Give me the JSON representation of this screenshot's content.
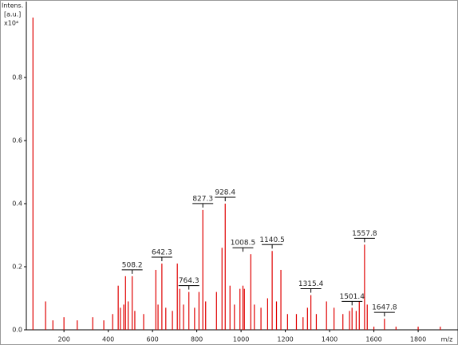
{
  "chart_data": {
    "type": "stick",
    "y_label_lines": [
      "Intens.",
      "[a.u.]",
      "x10⁴"
    ],
    "x_label": "m/z",
    "color": "#e00000",
    "xlim": [
      30,
      1980
    ],
    "ylim": [
      0,
      1.0
    ],
    "xticks": [
      200,
      400,
      600,
      800,
      1000,
      1200,
      1400,
      1600,
      1800
    ],
    "yticks": [
      {
        "value": 0,
        "label": "0.0"
      },
      0.2,
      0.4,
      0.6,
      0.8
    ],
    "x": [
      60,
      117,
      150,
      200,
      260,
      330,
      380,
      420,
      445,
      455,
      470,
      478,
      490,
      508.2,
      520,
      560,
      615,
      625,
      642.3,
      660,
      690,
      712,
      723,
      740,
      764.3,
      790,
      810,
      827.3,
      840,
      889,
      914,
      928.4,
      950,
      970,
      995,
      1008.5,
      1015,
      1044,
      1060,
      1090,
      1120,
      1140.5,
      1160,
      1180,
      1210,
      1250,
      1280,
      1300,
      1315.4,
      1340,
      1386,
      1420,
      1460,
      1490,
      1501.4,
      1520,
      1534,
      1557.8,
      1570,
      1600,
      1647.8,
      1700,
      1800,
      1900
    ],
    "values": [
      0.99,
      0.09,
      0.03,
      0.04,
      0.03,
      0.04,
      0.03,
      0.05,
      0.14,
      0.07,
      0.08,
      0.17,
      0.09,
      0.17,
      0.06,
      0.05,
      0.19,
      0.08,
      0.21,
      0.07,
      0.06,
      0.21,
      0.13,
      0.08,
      0.12,
      0.07,
      0.12,
      0.38,
      0.09,
      0.12,
      0.26,
      0.4,
      0.14,
      0.08,
      0.13,
      0.14,
      0.13,
      0.24,
      0.08,
      0.07,
      0.1,
      0.25,
      0.09,
      0.19,
      0.05,
      0.05,
      0.04,
      0.07,
      0.11,
      0.05,
      0.09,
      0.07,
      0.05,
      0.06,
      0.07,
      0.06,
      0.09,
      0.27,
      0.08,
      0.01,
      0.035,
      0.01,
      0.01,
      0.01
    ],
    "annotations": [
      {
        "x": 508.2,
        "y": 0.17
      },
      {
        "x": 642.3,
        "y": 0.21
      },
      {
        "x": 764.3,
        "y": 0.12
      },
      {
        "x": 827.3,
        "y": 0.38
      },
      {
        "x": 928.4,
        "y": 0.4
      },
      {
        "x": 1008.5,
        "y": 0.24
      },
      {
        "x": 1140.5,
        "y": 0.25
      },
      {
        "x": 1315.4,
        "y": 0.11
      },
      {
        "x": 1501.4,
        "y": 0.07
      },
      {
        "x": 1557.8,
        "y": 0.27
      },
      {
        "x": 1647.8,
        "y": 0.035
      }
    ]
  }
}
